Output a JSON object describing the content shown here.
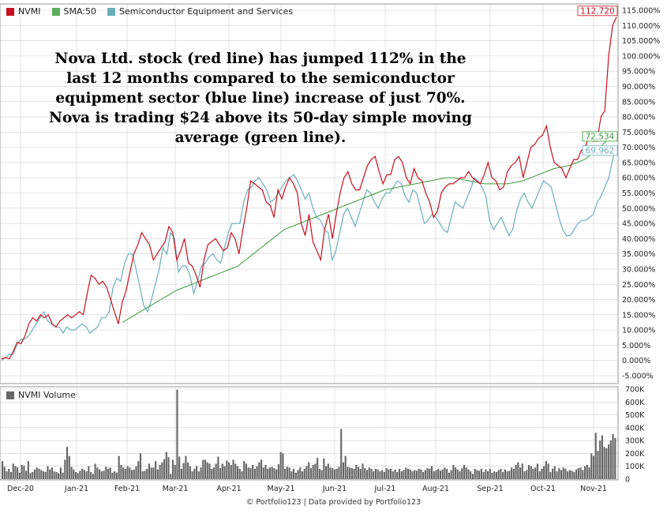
{
  "annotation": "Nova Ltd. stock (red line) has jumped 112% in the last 12 months compared to the semiconductor equipment sector (blue line) increase of just 70%. Nova is trading $24 above its 50-day simple moving average (green line).",
  "footer": "© Portfolio123 | Data provided by Portfolio123",
  "volume_legend": "NVMI Volume",
  "colors": {
    "nvmi": "#c8111e",
    "sma": "#3a9a3a",
    "semi": "#6aaebc",
    "volume": "#666666",
    "grid": "#d0d0d0"
  },
  "chart_data": {
    "type": "line",
    "x_labels": [
      "Dec-20",
      "Jan-21",
      "Feb-21",
      "Mar-21",
      "Apr-21",
      "May-21",
      "Jun-21",
      "Jul-21",
      "Aug-21",
      "Sep-21",
      "Oct-21",
      "Nov-21"
    ],
    "y_ticks": [
      "115.000%",
      "110.000%",
      "105.000%",
      "100.000%",
      "95.000%",
      "90.000%",
      "85.000%",
      "80.000%",
      "75.000%",
      "70.000%",
      "65.000%",
      "60.000%",
      "55.000%",
      "50.000%",
      "45.000%",
      "40.000%",
      "35.000%",
      "30.000%",
      "25.000%",
      "20.000%",
      "15.000%",
      "10.000%",
      "5.000%",
      "0.000%",
      "-5.000%"
    ],
    "ylim": [
      -5,
      115
    ],
    "legend_position": "top-left",
    "grid": true,
    "end_labels": {
      "nvmi": "112.720",
      "sma": "72.534",
      "semi": "69.962"
    },
    "series": [
      {
        "name": "NVMI",
        "key": "nvmi",
        "values": [
          0.5,
          1.0,
          0.5,
          3,
          6,
          5.5,
          8,
          12,
          14,
          13,
          15,
          14,
          15,
          12,
          11,
          13,
          14,
          15,
          14,
          15,
          16,
          15,
          22,
          28,
          27,
          25,
          26,
          24,
          20,
          16,
          12,
          19,
          23,
          29,
          35,
          38,
          42,
          40,
          38,
          33,
          35,
          37,
          39,
          44,
          42,
          33,
          36,
          40,
          32,
          31,
          28,
          24,
          33,
          38,
          39,
          40,
          38,
          36,
          37,
          42,
          40,
          35,
          43,
          50,
          59,
          58,
          57,
          56,
          52,
          51,
          47,
          56,
          53,
          57,
          60,
          58,
          55,
          45,
          41,
          48,
          39,
          36,
          33,
          43,
          48,
          40,
          48,
          55,
          60,
          62,
          58,
          56,
          56,
          60,
          64,
          66,
          67,
          62,
          58,
          61,
          61,
          66,
          67,
          65,
          60,
          58,
          63,
          60,
          59,
          55,
          52,
          47,
          49,
          55,
          57,
          58,
          58,
          59,
          60,
          60,
          62,
          60,
          59,
          58,
          61,
          65,
          60,
          59,
          56,
          57,
          62,
          64,
          65,
          67,
          60,
          65,
          70,
          71,
          73,
          74,
          77,
          70,
          65,
          64,
          63,
          60,
          63,
          66,
          66,
          69,
          70,
          74,
          72,
          72,
          80,
          82,
          100,
          110,
          112.72
        ]
      },
      {
        "name": "SMA:50",
        "key": "sma",
        "values": [
          12.5,
          14,
          15.5,
          17,
          18.5,
          20,
          21.5,
          23,
          24,
          25,
          26,
          27,
          28,
          29,
          30,
          31,
          33,
          35,
          37,
          39,
          41,
          43,
          44,
          45,
          46,
          47,
          48,
          49,
          50,
          51,
          52,
          53,
          54,
          55,
          56,
          56.5,
          57,
          57.5,
          58,
          58.5,
          59,
          59.5,
          60,
          60,
          59.5,
          59,
          58.5,
          58,
          58,
          58,
          58,
          58.5,
          59,
          60,
          61,
          62,
          63,
          63.5,
          64,
          65,
          66,
          68,
          70,
          72.534
        ]
      },
      {
        "name": "Semiconductor Equipment and Services",
        "key": "semi",
        "values": [
          0,
          1,
          2,
          2,
          5,
          7,
          7,
          8,
          10,
          12,
          14,
          16,
          13,
          12,
          11,
          11,
          9,
          11,
          10,
          10,
          11,
          12,
          11,
          9,
          10,
          11,
          14,
          14,
          16,
          24,
          27,
          26,
          32,
          35,
          35,
          30,
          24,
          18,
          16,
          20,
          25,
          30,
          37,
          35,
          42,
          40,
          29,
          31,
          31,
          28,
          22,
          26,
          31,
          32,
          34,
          35,
          33,
          32,
          37,
          42,
          45,
          45,
          45,
          52,
          56,
          57,
          59,
          60,
          58,
          56,
          52,
          53,
          55,
          57,
          59,
          60,
          61,
          59,
          56,
          53,
          55,
          50,
          47,
          46,
          43,
          42,
          33,
          36,
          42,
          48,
          50,
          47,
          44,
          48,
          52,
          56,
          55,
          52,
          50,
          53,
          55,
          55,
          57,
          59,
          58,
          54,
          52,
          56,
          55,
          50,
          45,
          46,
          48,
          47,
          45,
          43,
          42,
          47,
          52,
          51,
          50,
          53,
          56,
          60,
          59,
          57,
          54,
          46,
          43,
          45,
          47,
          44,
          41,
          43,
          49,
          53,
          55,
          52,
          50,
          53,
          56,
          59,
          58,
          57,
          52,
          47,
          43,
          41,
          41,
          43,
          45,
          46,
          46,
          47,
          48,
          52,
          54,
          57,
          60,
          66,
          69.962
        ]
      }
    ],
    "volume": {
      "y_ticks": [
        "700K",
        "600K",
        "500K",
        "400K",
        "300K",
        "200K",
        "100K",
        "0"
      ],
      "ylim": [
        0,
        700000
      ],
      "values": [
        140000,
        95000,
        60000,
        80000,
        55000,
        120000,
        100000,
        90000,
        50000,
        110000,
        105000,
        65000,
        140000,
        45000,
        55000,
        75000,
        90000,
        80000,
        70000,
        60000,
        55000,
        100000,
        75000,
        90000,
        60000,
        55000,
        45000,
        90000,
        50000,
        150000,
        250000,
        180000,
        95000,
        75000,
        55000,
        45000,
        65000,
        80000,
        70000,
        60000,
        100000,
        55000,
        40000,
        120000,
        90000,
        75000,
        60000,
        65000,
        95000,
        80000,
        90000,
        50000,
        60000,
        50000,
        180000,
        110000,
        90000,
        80000,
        100000,
        90000,
        70000,
        75000,
        100000,
        140000,
        200000,
        60000,
        65000,
        80000,
        120000,
        90000,
        90000,
        140000,
        75000,
        110000,
        130000,
        155000,
        210000,
        170000,
        40000,
        150000,
        110000,
        695000,
        175000,
        80000,
        125000,
        180000,
        130000,
        100000,
        60000,
        80000,
        100000,
        60000,
        90000,
        150000,
        150000,
        130000,
        120000,
        80000,
        90000,
        120000,
        175000,
        85000,
        120000,
        100000,
        145000,
        130000,
        110000,
        150000,
        120000,
        100000,
        80000,
        60000,
        140000,
        120000,
        90000,
        85000,
        110000,
        80000,
        100000,
        130000,
        150000,
        90000,
        110000,
        80000,
        90000,
        95000,
        85000,
        75000,
        115000,
        210000,
        200000,
        80000,
        95000,
        90000,
        60000,
        80000,
        50000,
        70000,
        90000,
        60000,
        80000,
        100000,
        130000,
        85000,
        110000,
        120000,
        165000,
        80000,
        70000,
        160000,
        100000,
        120000,
        90000,
        85000,
        75000,
        80000,
        95000,
        390000,
        130000,
        180000,
        95000,
        90000,
        85000,
        80000,
        110000,
        95000,
        80000,
        120000,
        85000,
        70000,
        90000,
        80000,
        60000,
        80000,
        75000,
        60000,
        70000,
        55000,
        85000,
        75000,
        80000,
        60000,
        75000,
        55000,
        80000,
        60000,
        70000,
        90000,
        80000,
        75000,
        60000,
        70000,
        65000,
        80000,
        75000,
        55000,
        70000,
        85000,
        80000,
        100000,
        60000,
        70000,
        80000,
        65000,
        75000,
        90000,
        80000,
        50000,
        70000,
        110000,
        90000,
        75000,
        60000,
        85000,
        110000,
        90000,
        75000,
        60000,
        40000,
        80000,
        70000,
        65000,
        80000,
        55000,
        75000,
        60000,
        80000,
        50000,
        60000,
        55000,
        70000,
        80000,
        55000,
        75000,
        60000,
        65000,
        90000,
        80000,
        110000,
        130000,
        90000,
        120000,
        60000,
        70000,
        110000,
        100000,
        80000,
        90000,
        120000,
        60000,
        80000,
        100000,
        140000,
        120000,
        55000,
        80000,
        100000,
        60000,
        85000,
        70000,
        90000,
        80000,
        60000,
        70000,
        65000,
        55000,
        75000,
        85000,
        90000,
        70000,
        100000,
        110000,
        90000,
        200000,
        180000,
        360000,
        220000,
        300000,
        340000,
        250000,
        240000,
        270000,
        300000,
        350000,
        320000
      ]
    }
  }
}
